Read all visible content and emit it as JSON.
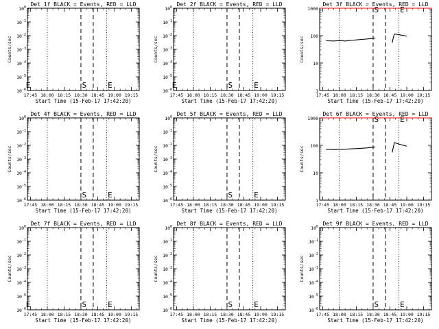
{
  "chart_data": [
    {
      "type": "line",
      "title": "Det 1f BLACK = Events, RED = LLD",
      "xlabel": "Start Time (15-Feb-17 17:42:20)",
      "ylabel": "Counts/sec",
      "y_scale": "log",
      "xticks": [
        "17:45",
        "18:00",
        "18:15",
        "18:30",
        "18:45",
        "19:00",
        "19:15"
      ],
      "yticks": [
        "10^0",
        "10^-1",
        "10^-2",
        "10^-3",
        "10^-4",
        "10^-5",
        "10^-6"
      ],
      "markers": [
        {
          "label": "E",
          "x": "17:43"
        },
        {
          "label": "S",
          "x": "18:33"
        },
        {
          "label": "E",
          "x": "18:56"
        }
      ],
      "series": []
    },
    {
      "type": "line",
      "title": "Det 2f BLACK = Events, RED = LLD",
      "xlabel": "Start Time (15-Feb-17 17:42:20)",
      "ylabel": "Counts/sec",
      "y_scale": "log",
      "xticks": [
        "17:45",
        "18:00",
        "18:15",
        "18:30",
        "18:45",
        "19:00",
        "19:15"
      ],
      "yticks": [
        "10^0",
        "10^-1",
        "10^-2",
        "10^-3",
        "10^-4",
        "10^-5",
        "10^-6"
      ],
      "markers": [
        {
          "label": "E",
          "x": "17:43"
        },
        {
          "label": "S",
          "x": "18:33"
        },
        {
          "label": "E",
          "x": "18:56"
        }
      ],
      "series": []
    },
    {
      "type": "line",
      "title": "Det 3f BLACK = Events, RED = LLD",
      "xlabel": "Start Time (15-Feb-17 17:42:20)",
      "ylabel": "Counts/sec",
      "y_scale": "log",
      "xticks": [
        "17:45",
        "18:00",
        "18:15",
        "18:30",
        "18:45",
        "19:00",
        "19:15"
      ],
      "yticks": [
        "1",
        "10",
        "100",
        "1000"
      ],
      "markers": [
        {
          "label": "S",
          "x": "18:33"
        },
        {
          "label": "E",
          "x": "18:56"
        }
      ],
      "series": [
        {
          "color": "#000000",
          "points": [
            [
              "17:48",
              65
            ],
            [
              "17:55",
              64
            ],
            [
              "18:00",
              66
            ],
            [
              "18:05",
              64
            ],
            [
              "18:10",
              67
            ],
            [
              "18:15",
              70
            ],
            [
              "18:20",
              73
            ],
            [
              "18:25",
              76
            ],
            [
              "18:30",
              80
            ],
            [
              "18:32",
              82
            ]
          ]
        },
        {
          "color": "#000000",
          "points": [
            [
              "18:47",
              55
            ],
            [
              "18:48",
              85
            ],
            [
              "18:49",
              115
            ],
            [
              "18:52",
              110
            ],
            [
              "18:55",
              105
            ],
            [
              "18:58",
              100
            ],
            [
              "19:00",
              95
            ]
          ]
        },
        {
          "color": "#ff0000",
          "points": [
            [
              "17:43",
              1000
            ],
            [
              "19:22",
              1000
            ]
          ]
        }
      ]
    },
    {
      "type": "line",
      "title": "Det 4f BLACK = Events, RED = LLD",
      "xlabel": "Start Time (15-Feb-17 17:42:20)",
      "ylabel": "Counts/sec",
      "y_scale": "log",
      "xticks": [
        "17:45",
        "18:00",
        "18:15",
        "18:30",
        "18:45",
        "19:00",
        "19:15"
      ],
      "yticks": [
        "10^0",
        "10^-1",
        "10^-2",
        "10^-3",
        "10^-4",
        "10^-5",
        "10^-6"
      ],
      "markers": [
        {
          "label": "S",
          "x": "18:33"
        },
        {
          "label": "E",
          "x": "18:56"
        }
      ],
      "series": []
    },
    {
      "type": "line",
      "title": "Det 5f BLACK = Events, RED = LLD",
      "xlabel": "Start Time (15-Feb-17 17:42:20)",
      "ylabel": "Counts/sec",
      "y_scale": "log",
      "xticks": [
        "17:45",
        "18:00",
        "18:15",
        "18:30",
        "18:45",
        "19:00",
        "19:15"
      ],
      "yticks": [
        "10^0",
        "10^-1",
        "10^-2",
        "10^-3",
        "10^-4",
        "10^-5",
        "10^-6"
      ],
      "markers": [
        {
          "label": "S",
          "x": "18:33"
        },
        {
          "label": "E",
          "x": "18:56"
        }
      ],
      "series": []
    },
    {
      "type": "line",
      "title": "Det 6f BLACK = Events, RED = LLD",
      "xlabel": "Start Time (15-Feb-17 17:42:20)",
      "ylabel": "Counts/sec",
      "y_scale": "log",
      "xticks": [
        "17:45",
        "18:00",
        "18:15",
        "18:30",
        "18:45",
        "19:00",
        "19:15"
      ],
      "yticks": [
        "1",
        "10",
        "100",
        "1000"
      ],
      "markers": [
        {
          "label": "S",
          "x": "18:33"
        },
        {
          "label": "E",
          "x": "18:56"
        }
      ],
      "series": [
        {
          "color": "#000000",
          "points": [
            [
              "17:48",
              72
            ],
            [
              "17:55",
              70
            ],
            [
              "18:00",
              71
            ],
            [
              "18:05",
              72
            ],
            [
              "18:10",
              74
            ],
            [
              "18:15",
              76
            ],
            [
              "18:20",
              78
            ],
            [
              "18:25",
              81
            ],
            [
              "18:30",
              85
            ],
            [
              "18:32",
              87
            ]
          ]
        },
        {
          "color": "#000000",
          "points": [
            [
              "18:47",
              55
            ],
            [
              "18:48",
              85
            ],
            [
              "18:49",
              125
            ],
            [
              "18:52",
              115
            ],
            [
              "18:55",
              105
            ],
            [
              "18:58",
              98
            ],
            [
              "19:00",
              92
            ]
          ]
        },
        {
          "color": "#ff0000",
          "points": [
            [
              "17:43",
              1000
            ],
            [
              "19:22",
              1000
            ]
          ]
        }
      ]
    },
    {
      "type": "line",
      "title": "Det 7f BLACK = Events, RED = LLD",
      "xlabel": "Start Time (15-Feb-17 17:42:20)",
      "ylabel": "Counts/sec",
      "y_scale": "log",
      "xticks": [
        "17:45",
        "18:00",
        "18:15",
        "18:30",
        "18:45",
        "19:00",
        "19:15"
      ],
      "yticks": [
        "10^0",
        "10^-1",
        "10^-2",
        "10^-3",
        "10^-4",
        "10^-5",
        "10^-6"
      ],
      "markers": [
        {
          "label": "E",
          "x": "17:43"
        },
        {
          "label": "S",
          "x": "18:33"
        },
        {
          "label": "E",
          "x": "18:56"
        }
      ],
      "series": []
    },
    {
      "type": "line",
      "title": "Det 8f BLACK = Events, RED = LLD",
      "xlabel": "Start Time (15-Feb-17 17:42:20)",
      "ylabel": "Counts/sec",
      "y_scale": "log",
      "xticks": [
        "17:45",
        "18:00",
        "18:15",
        "18:30",
        "18:45",
        "19:00",
        "19:15"
      ],
      "yticks": [
        "10^0",
        "10^-1",
        "10^-2",
        "10^-3",
        "10^-4",
        "10^-5",
        "10^-6"
      ],
      "markers": [
        {
          "label": "S",
          "x": "18:33"
        },
        {
          "label": "E",
          "x": "18:56"
        }
      ],
      "series": []
    },
    {
      "type": "line",
      "title": "Det 9f BLACK = Events, RED = LLD",
      "xlabel": "Start Time (15-Feb-17 17:42:20)",
      "ylabel": "Counts/sec",
      "y_scale": "log",
      "xticks": [
        "17:45",
        "18:00",
        "18:15",
        "18:30",
        "18:45",
        "19:00",
        "19:15"
      ],
      "yticks": [
        "10^0",
        "10^-1",
        "10^-2",
        "10^-3",
        "10^-4",
        "10^-5",
        "10^-6"
      ],
      "markers": [
        {
          "label": "S",
          "x": "18:33"
        },
        {
          "label": "E",
          "x": "18:56"
        }
      ],
      "series": []
    }
  ]
}
